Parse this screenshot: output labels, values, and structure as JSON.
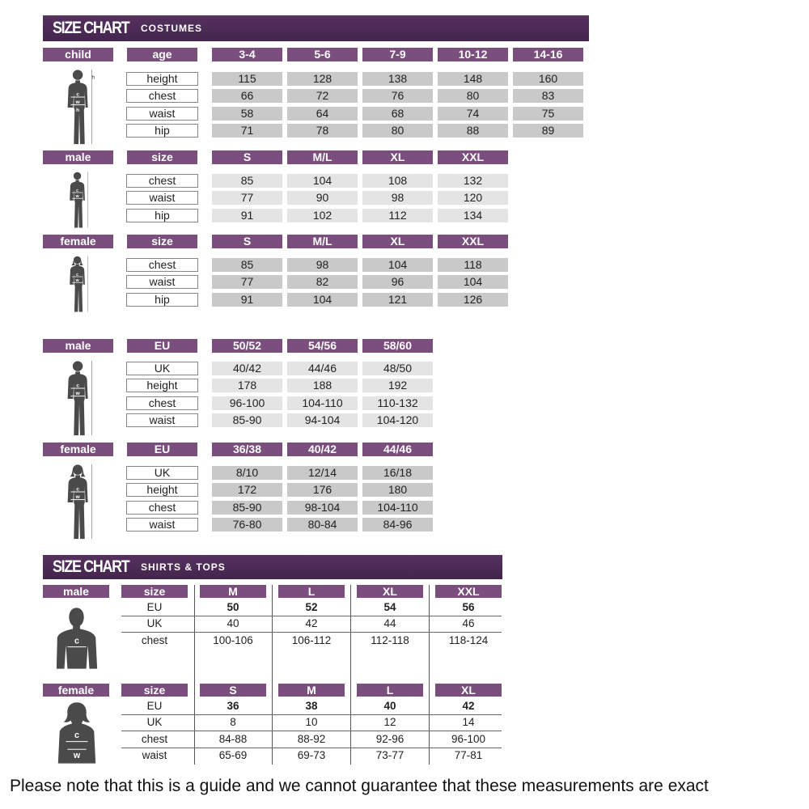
{
  "costumes": {
    "title": "SIZE CHART",
    "subtitle": "COSTUMES",
    "sections": [
      {
        "group": "child",
        "header": "age",
        "columns": [
          "3-4",
          "5-6",
          "7-9",
          "10-12",
          "14-16"
        ],
        "shade": "dark",
        "figure": "child-figure",
        "rows": [
          {
            "label": "height",
            "values": [
              "115",
              "128",
              "138",
              "148",
              "160"
            ]
          },
          {
            "label": "chest",
            "values": [
              "66",
              "72",
              "76",
              "80",
              "83"
            ]
          },
          {
            "label": "waist",
            "values": [
              "58",
              "64",
              "68",
              "74",
              "75"
            ]
          },
          {
            "label": "hip",
            "values": [
              "71",
              "78",
              "80",
              "88",
              "89"
            ]
          }
        ]
      },
      {
        "group": "male",
        "header": "size",
        "columns": [
          "S",
          "M/L",
          "XL",
          "XXL"
        ],
        "shade": "light",
        "figure": "male-figure",
        "rows": [
          {
            "label": "chest",
            "values": [
              "85",
              "104",
              "108",
              "132"
            ]
          },
          {
            "label": "waist",
            "values": [
              "77",
              "90",
              "98",
              "120"
            ]
          },
          {
            "label": "hip",
            "values": [
              "91",
              "102",
              "112",
              "134"
            ]
          }
        ]
      },
      {
        "group": "female",
        "header": "size",
        "columns": [
          "S",
          "M/L",
          "XL",
          "XXL"
        ],
        "shade": "dark",
        "figure": "female-figure",
        "rows": [
          {
            "label": "chest",
            "values": [
              "85",
              "98",
              "104",
              "118"
            ]
          },
          {
            "label": "waist",
            "values": [
              "77",
              "82",
              "96",
              "104"
            ]
          },
          {
            "label": "hip",
            "values": [
              "91",
              "104",
              "121",
              "126"
            ]
          }
        ]
      },
      {
        "group": "male",
        "header": "EU",
        "columns": [
          "50/52",
          "54/56",
          "58/60"
        ],
        "shade": "light",
        "figure": "male-figure",
        "rows": [
          {
            "label": "UK",
            "values": [
              "40/42",
              "44/46",
              "48/50"
            ]
          },
          {
            "label": "height",
            "values": [
              "178",
              "188",
              "192"
            ]
          },
          {
            "label": "chest",
            "values": [
              "96-100",
              "104-110",
              "110-132"
            ]
          },
          {
            "label": "waist",
            "values": [
              "85-90",
              "94-104",
              "104-120"
            ]
          }
        ]
      },
      {
        "group": "female",
        "header": "EU",
        "columns": [
          "36/38",
          "40/42",
          "44/46"
        ],
        "shade": "dark",
        "figure": "female-figure",
        "rows": [
          {
            "label": "UK",
            "values": [
              "8/10",
              "12/14",
              "16/18"
            ]
          },
          {
            "label": "height",
            "values": [
              "172",
              "176",
              "180"
            ]
          },
          {
            "label": "chest",
            "values": [
              "85-90",
              "98-104",
              "104-110"
            ]
          },
          {
            "label": "waist",
            "values": [
              "76-80",
              "80-84",
              "84-96"
            ]
          }
        ]
      }
    ]
  },
  "shirts": {
    "title": "SIZE CHART",
    "subtitle": "SHIRTS & TOPS",
    "sections": [
      {
        "group": "male",
        "header": "size",
        "columns": [
          "M",
          "L",
          "XL",
          "XXL"
        ],
        "figure": "male-torso",
        "rows": [
          {
            "label": "EU",
            "values": [
              "50",
              "52",
              "54",
              "56"
            ],
            "bold": true
          },
          {
            "label": "UK",
            "values": [
              "40",
              "42",
              "44",
              "46"
            ]
          },
          {
            "label": "chest",
            "values": [
              "100-106",
              "106-112",
              "112-118",
              "118-124"
            ]
          }
        ]
      },
      {
        "group": "female",
        "header": "size",
        "columns": [
          "S",
          "M",
          "L",
          "XL"
        ],
        "figure": "female-torso",
        "rows": [
          {
            "label": "EU",
            "values": [
              "36",
              "38",
              "40",
              "42"
            ],
            "bold": true
          },
          {
            "label": "UK",
            "values": [
              "8",
              "10",
              "12",
              "14"
            ]
          },
          {
            "label": "chest",
            "values": [
              "84-88",
              "88-92",
              "92-96",
              "96-100"
            ]
          },
          {
            "label": "waist",
            "values": [
              "65-69",
              "69-73",
              "73-77",
              "77-81"
            ]
          }
        ]
      }
    ]
  },
  "footer": {
    "note": "Please note that this is a guide and we cannot guarantee that these measurements are exact"
  },
  "colors": {
    "banner": "#4b2b55",
    "header": "#7a4f7e",
    "cell_dark": "#c9c9c9",
    "cell_light": "#e4e4e4"
  }
}
